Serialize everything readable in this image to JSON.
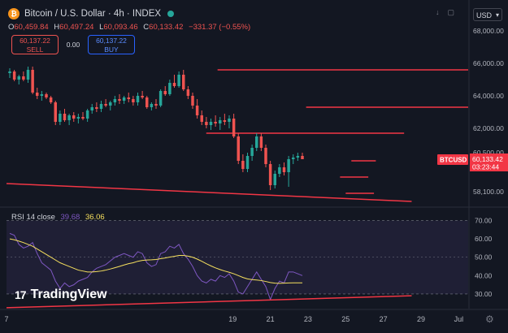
{
  "header": {
    "title": "Bitcoin / U.S. Dollar · 4h · INDEX",
    "logo": "₿",
    "ohlc": [
      {
        "label": "O",
        "value": "60,459.84"
      },
      {
        "label": "H",
        "value": "60,497.24"
      },
      {
        "label": "L",
        "value": "60,093.46"
      },
      {
        "label": "C",
        "value": "60,133.42"
      }
    ],
    "change": "−331.37 (−0.55%)"
  },
  "trade": {
    "sell_price": "60,137.22",
    "sell_label": "SELL",
    "spread": "0.00",
    "buy_price": "60,137.22",
    "buy_label": "BUY"
  },
  "currency": "USD",
  "icons": [
    "download-icon",
    "fullscreen-icon",
    "gear-icon",
    "tradingview-logo"
  ],
  "price_tag": {
    "symbol": "BTCUSD",
    "price": "60,133.42",
    "countdown": "03:23:44"
  },
  "rsi_legend": {
    "label": "RSI 14 close",
    "rsi_value": "39.68",
    "ma_value": "36.06"
  },
  "brand": {
    "mark": "17",
    "name": "TradingView"
  },
  "colors": {
    "background": "#131722",
    "bull": "#26a69a",
    "bear": "#ef5350",
    "hline": "#f23645",
    "rsi": "#7e57c2",
    "rsi_ma": "#f6e05e",
    "price_tag": "#f23645"
  },
  "chart_data": [
    {
      "type": "candlestick",
      "ylim": [
        57300,
        69500
      ],
      "xlim": [
        7,
        31.5
      ],
      "x_ticks": [
        {
          "x": 7,
          "label": "7"
        },
        {
          "x": 19,
          "label": "19"
        },
        {
          "x": 21,
          "label": "21"
        },
        {
          "x": 23,
          "label": "23"
        },
        {
          "x": 25,
          "label": "25"
        },
        {
          "x": 27,
          "label": "27"
        },
        {
          "x": 29,
          "label": "29"
        },
        {
          "x": 31,
          "label": "Jul"
        }
      ],
      "y_ticks": [
        {
          "v": 68000,
          "label": "68,000.00"
        },
        {
          "v": 66000,
          "label": "66,000.00"
        },
        {
          "v": 64000,
          "label": "64,000.00"
        },
        {
          "v": 62000,
          "label": "62,000.00"
        },
        {
          "v": 60500,
          "label": "60,500.00"
        },
        {
          "v": 58100,
          "label": "58,100.00"
        }
      ],
      "horizontal_lines": [
        {
          "from": 18.2,
          "to": 31.5,
          "price": 65600
        },
        {
          "from": 22.9,
          "to": 31.5,
          "price": 63300
        },
        {
          "from": 17.6,
          "to": 28.1,
          "price": 61700
        },
        {
          "from": 25.3,
          "to": 26.6,
          "price": 60000
        },
        {
          "from": 24.7,
          "to": 26.2,
          "price": 59000
        },
        {
          "from": 25.0,
          "to": 26.5,
          "price": 58000
        }
      ],
      "trend_lines": [
        {
          "x1": 7,
          "y1": 58600,
          "x2": 28.5,
          "y2": 57500
        }
      ],
      "candles": [
        {
          "o": 65400,
          "h": 65700,
          "l": 65100,
          "c": 65500
        },
        {
          "o": 65500,
          "h": 65600,
          "l": 64900,
          "c": 65000
        },
        {
          "o": 65000,
          "h": 65300,
          "l": 64700,
          "c": 65200
        },
        {
          "o": 65200,
          "h": 65500,
          "l": 64900,
          "c": 65000
        },
        {
          "o": 65000,
          "h": 65800,
          "l": 64800,
          "c": 65600
        },
        {
          "o": 65600,
          "h": 65800,
          "l": 64100,
          "c": 64200
        },
        {
          "o": 64200,
          "h": 64500,
          "l": 63800,
          "c": 64000
        },
        {
          "o": 64000,
          "h": 64300,
          "l": 63700,
          "c": 64100
        },
        {
          "o": 64100,
          "h": 64200,
          "l": 63800,
          "c": 63900
        },
        {
          "o": 63900,
          "h": 64000,
          "l": 63500,
          "c": 63600
        },
        {
          "o": 63600,
          "h": 63700,
          "l": 62200,
          "c": 62400
        },
        {
          "o": 62400,
          "h": 63100,
          "l": 62200,
          "c": 62900
        },
        {
          "o": 62900,
          "h": 63200,
          "l": 62400,
          "c": 62500
        },
        {
          "o": 62500,
          "h": 62900,
          "l": 62200,
          "c": 62800
        },
        {
          "o": 62800,
          "h": 63000,
          "l": 62400,
          "c": 62600
        },
        {
          "o": 62600,
          "h": 62900,
          "l": 62300,
          "c": 62700
        },
        {
          "o": 62700,
          "h": 63000,
          "l": 62500,
          "c": 62600
        },
        {
          "o": 62600,
          "h": 63200,
          "l": 62400,
          "c": 63100
        },
        {
          "o": 63100,
          "h": 63500,
          "l": 62900,
          "c": 63300
        },
        {
          "o": 63300,
          "h": 63600,
          "l": 63000,
          "c": 63200
        },
        {
          "o": 63200,
          "h": 63700,
          "l": 63000,
          "c": 63500
        },
        {
          "o": 63500,
          "h": 63800,
          "l": 63300,
          "c": 63400
        },
        {
          "o": 63400,
          "h": 63700,
          "l": 63100,
          "c": 63600
        },
        {
          "o": 63600,
          "h": 64000,
          "l": 63400,
          "c": 63800
        },
        {
          "o": 63800,
          "h": 64100,
          "l": 63500,
          "c": 63700
        },
        {
          "o": 63700,
          "h": 64000,
          "l": 63500,
          "c": 63900
        },
        {
          "o": 63900,
          "h": 64200,
          "l": 63600,
          "c": 63800
        },
        {
          "o": 63800,
          "h": 64000,
          "l": 63400,
          "c": 63600
        },
        {
          "o": 63600,
          "h": 64200,
          "l": 63400,
          "c": 64000
        },
        {
          "o": 64000,
          "h": 64300,
          "l": 63800,
          "c": 63900
        },
        {
          "o": 63900,
          "h": 64000,
          "l": 63200,
          "c": 63300
        },
        {
          "o": 63300,
          "h": 63600,
          "l": 63100,
          "c": 63500
        },
        {
          "o": 63500,
          "h": 63800,
          "l": 63200,
          "c": 63400
        },
        {
          "o": 63400,
          "h": 64400,
          "l": 63300,
          "c": 64300
        },
        {
          "o": 64300,
          "h": 64600,
          "l": 64000,
          "c": 64100
        },
        {
          "o": 64100,
          "h": 65000,
          "l": 64000,
          "c": 64800
        },
        {
          "o": 64800,
          "h": 65300,
          "l": 64500,
          "c": 64600
        },
        {
          "o": 64600,
          "h": 65500,
          "l": 64500,
          "c": 65300
        },
        {
          "o": 65300,
          "h": 65600,
          "l": 64300,
          "c": 64400
        },
        {
          "o": 64400,
          "h": 64600,
          "l": 63800,
          "c": 64000
        },
        {
          "o": 64000,
          "h": 64200,
          "l": 63200,
          "c": 63400
        },
        {
          "o": 63400,
          "h": 63800,
          "l": 62600,
          "c": 62800
        },
        {
          "o": 62800,
          "h": 63100,
          "l": 62200,
          "c": 62400
        },
        {
          "o": 62400,
          "h": 62700,
          "l": 62000,
          "c": 62200
        },
        {
          "o": 62200,
          "h": 62600,
          "l": 61900,
          "c": 62400
        },
        {
          "o": 62400,
          "h": 62800,
          "l": 62100,
          "c": 62300
        },
        {
          "o": 62300,
          "h": 62700,
          "l": 61900,
          "c": 62500
        },
        {
          "o": 62500,
          "h": 62900,
          "l": 62200,
          "c": 62400
        },
        {
          "o": 62400,
          "h": 62800,
          "l": 62000,
          "c": 62600
        },
        {
          "o": 62600,
          "h": 62900,
          "l": 61400,
          "c": 61500
        },
        {
          "o": 61500,
          "h": 61700,
          "l": 59800,
          "c": 60000
        },
        {
          "o": 60000,
          "h": 60400,
          "l": 59300,
          "c": 59500
        },
        {
          "o": 59500,
          "h": 60500,
          "l": 59300,
          "c": 60300
        },
        {
          "o": 60300,
          "h": 61000,
          "l": 60000,
          "c": 60800
        },
        {
          "o": 60800,
          "h": 61700,
          "l": 60600,
          "c": 61500
        },
        {
          "o": 61500,
          "h": 61700,
          "l": 60600,
          "c": 60800
        },
        {
          "o": 60800,
          "h": 61000,
          "l": 59600,
          "c": 59800
        },
        {
          "o": 59800,
          "h": 60000,
          "l": 58200,
          "c": 58500
        },
        {
          "o": 58500,
          "h": 59400,
          "l": 58300,
          "c": 59200
        },
        {
          "o": 59200,
          "h": 59800,
          "l": 59000,
          "c": 59600
        },
        {
          "o": 59600,
          "h": 59900,
          "l": 59100,
          "c": 59300
        },
        {
          "o": 59300,
          "h": 60300,
          "l": 58400,
          "c": 60100
        },
        {
          "o": 60100,
          "h": 60400,
          "l": 59800,
          "c": 60200
        },
        {
          "o": 60200,
          "h": 60500,
          "l": 60000,
          "c": 60300
        },
        {
          "o": 60300,
          "h": 60500,
          "l": 60100,
          "c": 60100
        }
      ]
    },
    {
      "type": "line",
      "ylim": [
        22,
        76
      ],
      "y_ticks": [
        {
          "v": 70,
          "label": "70.00"
        },
        {
          "v": 60,
          "label": "60.00"
        },
        {
          "v": 50,
          "label": "50.00"
        },
        {
          "v": 40,
          "label": "40.00"
        },
        {
          "v": 30,
          "label": "30.00"
        }
      ],
      "band": {
        "upper": 70,
        "lower": 30
      },
      "series": [
        {
          "key": "rsi",
          "values": [
            63,
            62,
            57,
            55,
            56,
            58,
            52,
            47,
            45,
            43,
            37,
            33,
            36,
            34,
            35,
            37,
            38,
            39,
            42,
            44,
            45,
            46,
            48,
            50,
            51,
            52,
            51,
            50,
            53,
            52,
            47,
            45,
            46,
            52,
            53,
            56,
            55,
            57,
            52,
            49,
            45,
            40,
            37,
            36,
            38,
            37,
            40,
            39,
            41,
            37,
            31,
            30,
            34,
            38,
            42,
            38,
            34,
            27,
            33,
            37,
            36,
            42,
            42,
            41,
            40
          ]
        },
        {
          "key": "rsi_ma",
          "values": [
            60,
            59.5,
            58.8,
            58,
            57,
            56,
            54.5,
            53,
            51.5,
            50,
            48.5,
            47,
            46,
            45,
            44,
            43,
            42.5,
            42,
            42,
            42.2,
            42.5,
            43,
            43.6,
            44.3,
            45,
            45.8,
            46.5,
            47,
            47.8,
            48.3,
            48.5,
            48.6,
            48.8,
            49.2,
            49.6,
            50.1,
            50.5,
            51,
            51,
            50.6,
            50,
            49,
            47.8,
            46.5,
            45.3,
            44.2,
            43.3,
            42.5,
            41.8,
            41,
            40,
            39,
            38.2,
            37.8,
            37.6,
            37.3,
            36.8,
            36.2,
            35.9,
            35.8,
            35.9,
            36,
            36.05,
            36.06,
            36.06
          ]
        }
      ],
      "trend_lines": [
        {
          "x1": 7,
          "y1": 22.5,
          "x2": 28.5,
          "y2": 29
        }
      ]
    }
  ]
}
